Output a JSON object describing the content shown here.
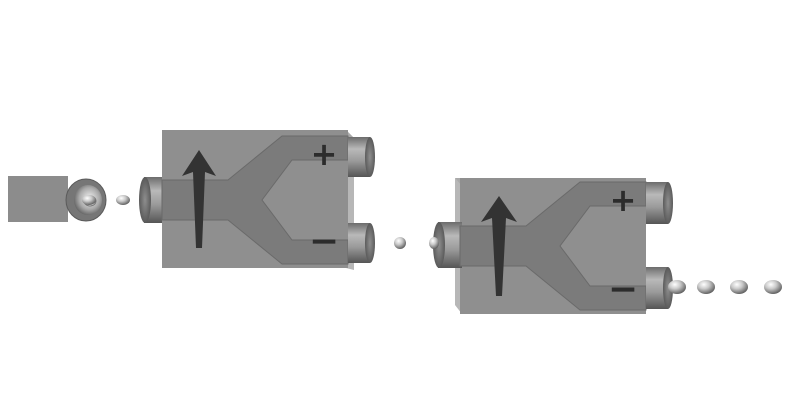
{
  "diagram": {
    "devices": [
      {
        "id": "splitter-1",
        "upper_port_label": "+",
        "lower_port_label": "−",
        "upper_port_color": "#8e8e8e",
        "lower_port_color": "#8e8e8e"
      },
      {
        "id": "splitter-2",
        "upper_port_label": "+",
        "lower_port_label": "−",
        "upper_port_color": "#8e8e8e",
        "lower_port_color": "#8e8e8e"
      }
    ],
    "colors": {
      "background": "#ffffff",
      "body_front": "#8f8f8f",
      "body_top": "#a9a9a9",
      "body_side": "#b7b7b7",
      "channel": "#7b7b7b",
      "channel_edge": "#6a6a6a",
      "arrow": "#333333",
      "sign": "#2c2c2c",
      "particle": "#b8b8b8"
    }
  }
}
